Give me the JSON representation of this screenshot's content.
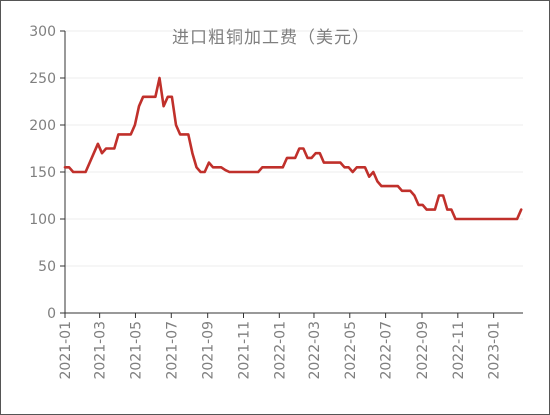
{
  "chart_data": {
    "type": "line",
    "title": "进口粗铜加工费（美元）",
    "xlabel": "",
    "ylabel": "",
    "ylim": [
      0,
      300
    ],
    "yticks": [
      0,
      50,
      100,
      150,
      200,
      250,
      300
    ],
    "grid": true,
    "x_start": "2021-01-01",
    "x_end": "2023-02-20",
    "xticks": [
      "2021-01",
      "2021-03",
      "2021-05",
      "2021-07",
      "2021-09",
      "2021-11",
      "2022-01",
      "2022-03",
      "2022-05",
      "2022-07",
      "2022-09",
      "2022-11",
      "2023-01"
    ],
    "color": "#c0302b",
    "series": [
      {
        "points": [
          [
            "2021-01-01",
            155
          ],
          [
            "2021-01-08",
            155
          ],
          [
            "2021-01-15",
            150
          ],
          [
            "2021-01-22",
            150
          ],
          [
            "2021-01-29",
            150
          ],
          [
            "2021-02-05",
            150
          ],
          [
            "2021-02-12",
            160
          ],
          [
            "2021-02-19",
            170
          ],
          [
            "2021-02-26",
            180
          ],
          [
            "2021-03-05",
            170
          ],
          [
            "2021-03-12",
            175
          ],
          [
            "2021-03-19",
            175
          ],
          [
            "2021-03-26",
            175
          ],
          [
            "2021-04-02",
            190
          ],
          [
            "2021-04-09",
            190
          ],
          [
            "2021-04-16",
            190
          ],
          [
            "2021-04-23",
            190
          ],
          [
            "2021-04-30",
            200
          ],
          [
            "2021-05-07",
            220
          ],
          [
            "2021-05-14",
            230
          ],
          [
            "2021-05-21",
            230
          ],
          [
            "2021-05-28",
            230
          ],
          [
            "2021-06-04",
            230
          ],
          [
            "2021-06-11",
            250
          ],
          [
            "2021-06-18",
            220
          ],
          [
            "2021-06-25",
            230
          ],
          [
            "2021-07-02",
            230
          ],
          [
            "2021-07-09",
            200
          ],
          [
            "2021-07-16",
            190
          ],
          [
            "2021-07-23",
            190
          ],
          [
            "2021-07-30",
            190
          ],
          [
            "2021-08-06",
            170
          ],
          [
            "2021-08-13",
            155
          ],
          [
            "2021-08-20",
            150
          ],
          [
            "2021-08-27",
            150
          ],
          [
            "2021-09-03",
            160
          ],
          [
            "2021-09-10",
            155
          ],
          [
            "2021-09-17",
            155
          ],
          [
            "2021-09-24",
            155
          ],
          [
            "2021-10-01",
            152
          ],
          [
            "2021-10-08",
            150
          ],
          [
            "2021-10-15",
            150
          ],
          [
            "2021-10-22",
            150
          ],
          [
            "2021-10-29",
            150
          ],
          [
            "2021-11-05",
            150
          ],
          [
            "2021-11-12",
            150
          ],
          [
            "2021-11-19",
            150
          ],
          [
            "2021-11-26",
            150
          ],
          [
            "2021-12-03",
            155
          ],
          [
            "2021-12-10",
            155
          ],
          [
            "2021-12-17",
            155
          ],
          [
            "2021-12-24",
            155
          ],
          [
            "2021-12-31",
            155
          ],
          [
            "2022-01-07",
            155
          ],
          [
            "2022-01-14",
            165
          ],
          [
            "2022-01-21",
            165
          ],
          [
            "2022-01-28",
            165
          ],
          [
            "2022-02-04",
            175
          ],
          [
            "2022-02-11",
            175
          ],
          [
            "2022-02-18",
            165
          ],
          [
            "2022-02-25",
            165
          ],
          [
            "2022-03-04",
            170
          ],
          [
            "2022-03-11",
            170
          ],
          [
            "2022-03-18",
            160
          ],
          [
            "2022-03-25",
            160
          ],
          [
            "2022-04-01",
            160
          ],
          [
            "2022-04-08",
            160
          ],
          [
            "2022-04-15",
            160
          ],
          [
            "2022-04-22",
            155
          ],
          [
            "2022-04-29",
            155
          ],
          [
            "2022-05-06",
            150
          ],
          [
            "2022-05-13",
            155
          ],
          [
            "2022-05-20",
            155
          ],
          [
            "2022-05-27",
            155
          ],
          [
            "2022-06-03",
            145
          ],
          [
            "2022-06-10",
            150
          ],
          [
            "2022-06-17",
            140
          ],
          [
            "2022-06-24",
            135
          ],
          [
            "2022-07-01",
            135
          ],
          [
            "2022-07-08",
            135
          ],
          [
            "2022-07-15",
            135
          ],
          [
            "2022-07-22",
            135
          ],
          [
            "2022-07-29",
            130
          ],
          [
            "2022-08-05",
            130
          ],
          [
            "2022-08-12",
            130
          ],
          [
            "2022-08-19",
            125
          ],
          [
            "2022-08-26",
            115
          ],
          [
            "2022-09-02",
            115
          ],
          [
            "2022-09-09",
            110
          ],
          [
            "2022-09-16",
            110
          ],
          [
            "2022-09-23",
            110
          ],
          [
            "2022-09-30",
            125
          ],
          [
            "2022-10-07",
            125
          ],
          [
            "2022-10-14",
            110
          ],
          [
            "2022-10-21",
            110
          ],
          [
            "2022-10-28",
            100
          ],
          [
            "2022-11-04",
            100
          ],
          [
            "2022-11-11",
            100
          ],
          [
            "2022-11-18",
            100
          ],
          [
            "2022-11-25",
            100
          ],
          [
            "2022-12-02",
            100
          ],
          [
            "2022-12-09",
            100
          ],
          [
            "2022-12-16",
            100
          ],
          [
            "2022-12-23",
            100
          ],
          [
            "2022-12-30",
            100
          ],
          [
            "2023-01-06",
            100
          ],
          [
            "2023-01-13",
            100
          ],
          [
            "2023-01-20",
            100
          ],
          [
            "2023-01-27",
            100
          ],
          [
            "2023-02-03",
            100
          ],
          [
            "2023-02-10",
            100
          ],
          [
            "2023-02-17",
            110
          ]
        ]
      }
    ]
  }
}
